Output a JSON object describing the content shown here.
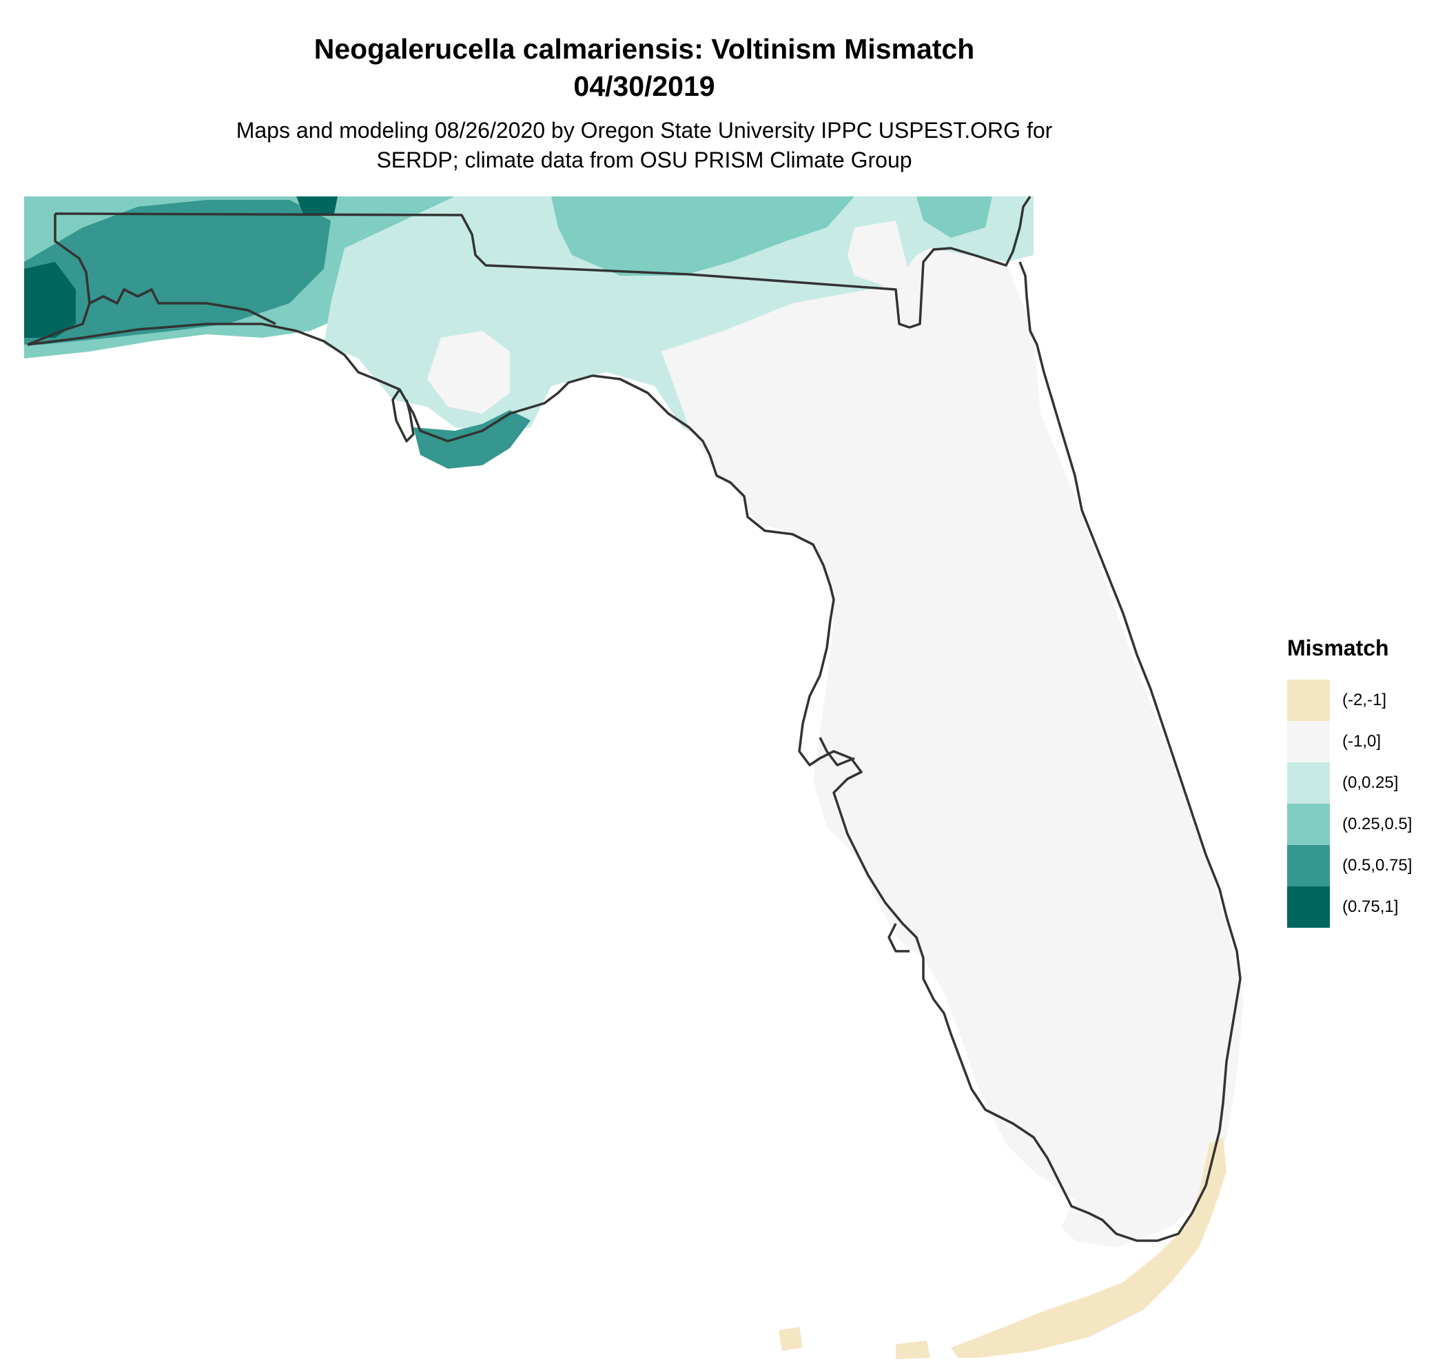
{
  "title": {
    "line1": "Neogalerucella calmariensis: Voltinism Mismatch",
    "line2": "04/30/2019"
  },
  "subtitle": {
    "line1": "Maps and modeling 08/26/2020 by Oregon State University IPPC USPEST.ORG for",
    "line2": "SERDP; climate data from OSU PRISM Climate Group"
  },
  "legend": {
    "title": "Mismatch",
    "items": [
      {
        "label": "(-2,-1]",
        "color": "#f5e6c3"
      },
      {
        "label": "(-1,0]",
        "color": "#f5f5f5"
      },
      {
        "label": "(0,0.25]",
        "color": "#c7eae5"
      },
      {
        "label": "(0.25,0.5]",
        "color": "#80cdc1"
      },
      {
        "label": "(0.5,0.75]",
        "color": "#35978f"
      },
      {
        "label": "(0.75,1]",
        "color": "#01665e"
      }
    ]
  },
  "map": {
    "region": "Florida",
    "outline_color": "#333333"
  }
}
